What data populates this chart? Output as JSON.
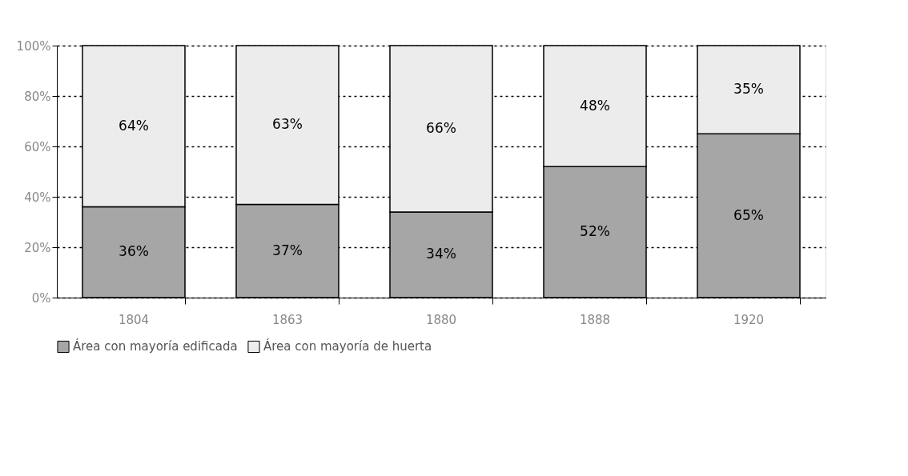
{
  "chart_data": {
    "type": "bar",
    "stacked": true,
    "categories": [
      "1804",
      "1863",
      "1880",
      "1888",
      "1920"
    ],
    "series": [
      {
        "name": "Área con mayoría edificada",
        "color": "#a6a6a6",
        "values": [
          36,
          37,
          34,
          52,
          65
        ]
      },
      {
        "name": "Área con mayoría de huerta",
        "color": "#ececec",
        "values": [
          64,
          63,
          66,
          48,
          35
        ]
      }
    ],
    "ylim": [
      0,
      100
    ],
    "yticks": [
      {
        "value": 0,
        "label": "0%"
      },
      {
        "value": 20,
        "label": "20%"
      },
      {
        "value": 40,
        "label": "40%"
      },
      {
        "value": 60,
        "label": "60%"
      },
      {
        "value": 80,
        "label": "80%"
      },
      {
        "value": 100,
        "label": "100%"
      }
    ],
    "value_labels": [
      [
        "36%",
        "37%",
        "34%",
        "52%",
        "65%"
      ],
      [
        "64%",
        "63%",
        "66%",
        "48%",
        "35%"
      ]
    ],
    "grid": "y",
    "legend": "bottom"
  }
}
